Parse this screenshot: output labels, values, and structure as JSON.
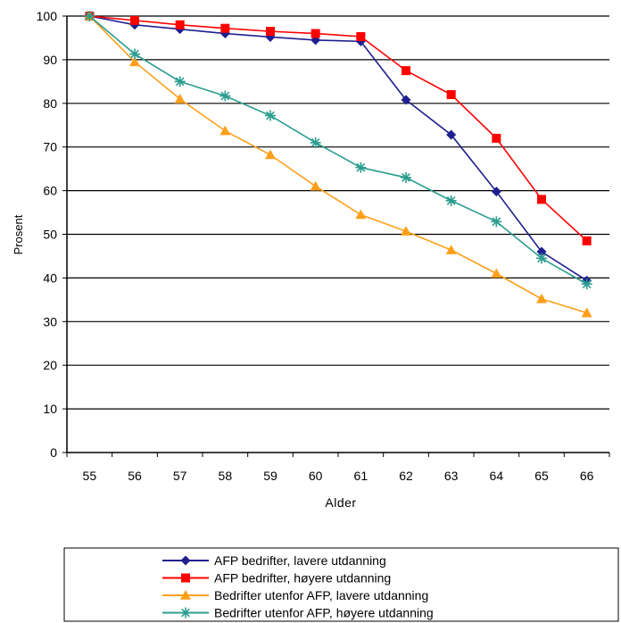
{
  "chart_data": {
    "type": "line",
    "xlabel": "Alder",
    "ylabel": "Prosent",
    "x": [
      55,
      56,
      57,
      58,
      59,
      60,
      61,
      62,
      63,
      64,
      65,
      66
    ],
    "ylim": [
      0,
      100
    ],
    "yticks": [
      0,
      10,
      20,
      30,
      40,
      50,
      60,
      70,
      80,
      90,
      100
    ],
    "grid": "horizontal",
    "legend_position": "bottom",
    "series": [
      {
        "name": "AFP bedrifter, lavere utdanning",
        "color": "#1f1f8f",
        "marker": "diamond",
        "values": [
          100,
          98,
          97,
          96,
          95.2,
          94.5,
          94.2,
          80.8,
          72.8,
          59.8,
          46,
          39.4
        ]
      },
      {
        "name": "AFP bedrifter, høyere utdanning",
        "color": "#ff0000",
        "marker": "square",
        "values": [
          100,
          99,
          98,
          97.2,
          96.5,
          96,
          95.3,
          87.5,
          82,
          72,
          58,
          48.5
        ]
      },
      {
        "name": "Bedrifter utenfor AFP, lavere utdanning",
        "color": "#ff9f1a",
        "marker": "triangle",
        "values": [
          100,
          89.5,
          81,
          73.7,
          68.2,
          61,
          54.5,
          50.7,
          46.4,
          41,
          35.2,
          32
        ]
      },
      {
        "name": "Bedrifter utenfor AFP, høyere utdanning",
        "color": "#2a9d8f",
        "marker": "star",
        "values": [
          100,
          91.3,
          85,
          81.7,
          77.2,
          71,
          65.3,
          63,
          57.7,
          52.9,
          44.5,
          38.6
        ]
      }
    ]
  }
}
